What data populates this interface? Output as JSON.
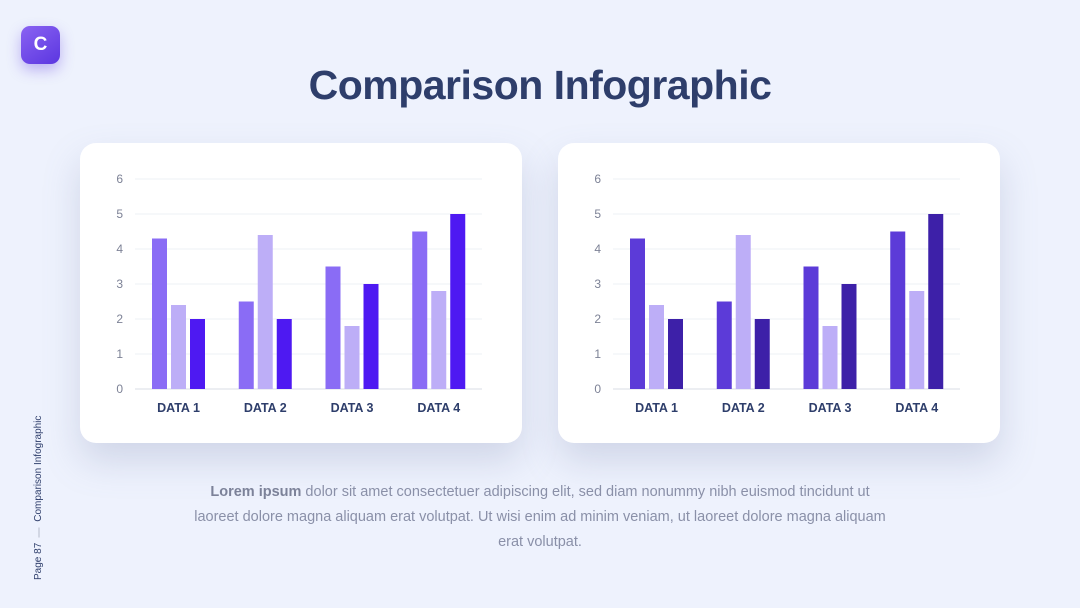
{
  "logo": {
    "letter": "C"
  },
  "title": "Comparison Infographic",
  "body": {
    "lead": "Lorem ipsum",
    "text": " dolor sit amet consectetuer adipiscing elit, sed diam nonummy nibh euismod tincidunt ut laoreet dolore magna aliquam erat volutpat. Ut wisi enim ad minim veniam, ut laoreet dolore magna aliquam erat volutpat."
  },
  "sidebar": {
    "page": "Page 87",
    "label": "Comparison Infographic"
  },
  "chart_data": [
    {
      "type": "bar",
      "categories": [
        "DATA 1",
        "DATA 2",
        "DATA 3",
        "DATA 4"
      ],
      "ylim": [
        0,
        6
      ],
      "yticks": [
        0,
        1,
        2,
        3,
        4,
        5,
        6
      ],
      "grid": true,
      "series": [
        {
          "values": [
            4.3,
            2.5,
            3.5,
            4.5
          ],
          "color": "#8a6cf5"
        },
        {
          "values": [
            2.4,
            4.4,
            1.8,
            2.8
          ],
          "color": "#bdaef7"
        },
        {
          "values": [
            2.0,
            2.0,
            3.0,
            5.0
          ],
          "color": "#4e19f2"
        }
      ]
    },
    {
      "type": "bar",
      "categories": [
        "DATA 1",
        "DATA 2",
        "DATA 3",
        "DATA 4"
      ],
      "ylim": [
        0,
        6
      ],
      "yticks": [
        0,
        1,
        2,
        3,
        4,
        5,
        6
      ],
      "grid": true,
      "series": [
        {
          "values": [
            4.3,
            2.5,
            3.5,
            4.5
          ],
          "color": "#5c3bd8"
        },
        {
          "values": [
            2.4,
            4.4,
            1.8,
            2.8
          ],
          "color": "#bdaef7"
        },
        {
          "values": [
            2.0,
            2.0,
            3.0,
            5.0
          ],
          "color": "#3d20a8"
        }
      ]
    }
  ]
}
